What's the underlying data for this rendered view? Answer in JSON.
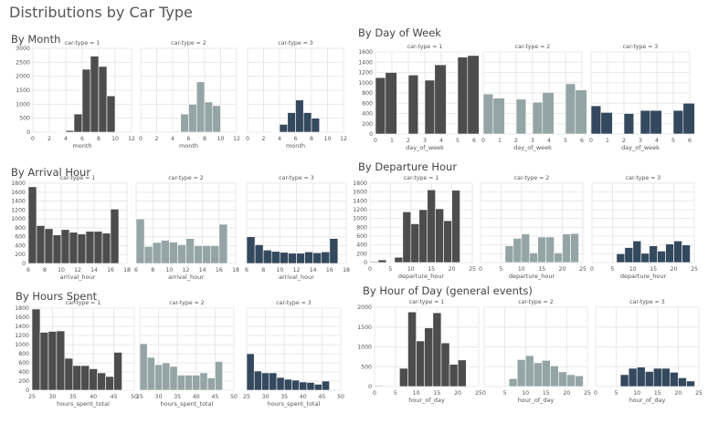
{
  "title": "Distributions by Car Type",
  "colors": {
    "car1": "#4d4d4d",
    "car2": "#95a5a6",
    "car3": "#34495e",
    "grid": "#e8e8e8",
    "axis_text": "#555555"
  },
  "sections": [
    {
      "id": "month",
      "title": "By Month"
    },
    {
      "id": "dow",
      "title": "By Day of Week"
    },
    {
      "id": "arrival",
      "title": "By Arrival Hour"
    },
    {
      "id": "departure",
      "title": "By Departure Hour"
    },
    {
      "id": "hours_spent",
      "title": "By Hours Spent"
    },
    {
      "id": "hour_of_day",
      "title": "By Hour of Day (general events)"
    }
  ],
  "chart_data": [
    {
      "type": "bar",
      "section": "By Month",
      "xlabel": "month",
      "ylabel": "",
      "xlim": [
        0,
        12
      ],
      "ylim": [
        0,
        3000
      ],
      "bin_width": 1,
      "xticks": [
        0,
        2,
        4,
        6,
        8,
        10,
        12
      ],
      "yticks": [
        0,
        500,
        1000,
        1500,
        2000,
        2500,
        3000
      ],
      "grid": true,
      "panels": [
        {
          "title": "car-type = 1",
          "x": [
            3,
            4,
            5,
            6,
            7,
            8,
            9
          ],
          "values": [
            10,
            60,
            650,
            2250,
            2720,
            2350,
            1300
          ]
        },
        {
          "title": "car-type = 2",
          "x": [
            4,
            5,
            6,
            7,
            8,
            9
          ],
          "values": [
            30,
            650,
            1000,
            1800,
            1080,
            950
          ]
        },
        {
          "title": "car-type = 3",
          "x": [
            3,
            4,
            5,
            6,
            7,
            8
          ],
          "values": [
            10,
            280,
            700,
            1150,
            700,
            500
          ]
        }
      ]
    },
    {
      "type": "bar",
      "section": "By Day of Week",
      "xlabel": "day_of_week",
      "ylabel": "",
      "xlim": [
        0,
        6
      ],
      "ylim": [
        0,
        1600
      ],
      "xticks": [
        0,
        1,
        2,
        3,
        4,
        5,
        6
      ],
      "yticks": [
        0,
        200,
        400,
        600,
        800,
        1000,
        1200,
        1400,
        1600
      ],
      "grid": true,
      "panels": [
        {
          "title": "car-type = 1",
          "bars": [
            {
              "start": 0,
              "end": 0.6,
              "value": 1100
            },
            {
              "start": 0.6,
              "end": 1.3,
              "value": 1200
            },
            {
              "start": 2,
              "end": 2.6,
              "value": 1150
            },
            {
              "start": 3,
              "end": 3.6,
              "value": 1050
            },
            {
              "start": 3.6,
              "end": 4.3,
              "value": 1350
            },
            {
              "start": 5,
              "end": 5.6,
              "value": 1500
            },
            {
              "start": 5.6,
              "end": 6.3,
              "value": 1530
            }
          ]
        },
        {
          "title": "car-type = 2",
          "bars": [
            {
              "start": 0,
              "end": 0.6,
              "value": 780
            },
            {
              "start": 0.6,
              "end": 1.3,
              "value": 700
            },
            {
              "start": 2,
              "end": 2.6,
              "value": 680
            },
            {
              "start": 3,
              "end": 3.6,
              "value": 620
            },
            {
              "start": 3.6,
              "end": 4.3,
              "value": 810
            },
            {
              "start": 5,
              "end": 5.6,
              "value": 980
            },
            {
              "start": 5.6,
              "end": 6.3,
              "value": 860
            }
          ]
        },
        {
          "title": "car-type = 3",
          "bars": [
            {
              "start": 0,
              "end": 0.6,
              "value": 550
            },
            {
              "start": 0.6,
              "end": 1.3,
              "value": 420
            },
            {
              "start": 2,
              "end": 2.6,
              "value": 400
            },
            {
              "start": 3,
              "end": 3.6,
              "value": 460
            },
            {
              "start": 3.6,
              "end": 4.3,
              "value": 460
            },
            {
              "start": 5,
              "end": 5.6,
              "value": 460
            },
            {
              "start": 5.6,
              "end": 6.3,
              "value": 600
            }
          ]
        }
      ]
    },
    {
      "type": "bar",
      "section": "By Arrival Hour",
      "xlabel": "arrival_hour",
      "ylabel": "",
      "xlim": [
        6,
        18
      ],
      "ylim": [
        0,
        1800
      ],
      "bin_width": 1,
      "xticks": [
        6,
        8,
        10,
        12,
        14,
        16,
        18
      ],
      "yticks": [
        0,
        200,
        400,
        600,
        800,
        1000,
        1200,
        1400,
        1600,
        1800
      ],
      "grid": true,
      "panels": [
        {
          "title": "car-type = 1",
          "x": [
            6,
            7,
            8,
            9,
            10,
            11,
            12,
            13,
            14,
            15,
            16
          ],
          "values": [
            1720,
            850,
            780,
            640,
            760,
            700,
            660,
            720,
            720,
            680,
            1220
          ]
        },
        {
          "title": "car-type = 2",
          "x": [
            6,
            7,
            8,
            9,
            10,
            11,
            12,
            13,
            14,
            15,
            16
          ],
          "values": [
            1000,
            380,
            470,
            520,
            480,
            420,
            560,
            400,
            400,
            400,
            880
          ]
        },
        {
          "title": "car-type = 3",
          "x": [
            6,
            7,
            8,
            9,
            10,
            11,
            12,
            13,
            14,
            15,
            16
          ],
          "values": [
            600,
            420,
            300,
            270,
            250,
            230,
            230,
            260,
            240,
            260,
            560
          ]
        }
      ]
    },
    {
      "type": "bar",
      "section": "By Departure Hour",
      "xlabel": "departure_hour",
      "ylabel": "",
      "xlim": [
        0,
        25
      ],
      "ylim": [
        0,
        1800
      ],
      "bin_width": 2,
      "xticks": [
        0,
        5,
        10,
        15,
        20,
        25
      ],
      "yticks": [
        0,
        200,
        400,
        600,
        800,
        1000,
        1200,
        1400,
        1600,
        1800
      ],
      "grid": true,
      "panels": [
        {
          "title": "car-type = 1",
          "x": [
            0,
            2,
            4,
            6,
            8,
            10,
            12,
            14,
            16,
            18,
            20,
            22
          ],
          "values": [
            20,
            60,
            0,
            120,
            1150,
            880,
            1200,
            1650,
            1220,
            950,
            1640,
            0
          ]
        },
        {
          "title": "car-type = 2",
          "x": [
            4,
            6,
            8,
            10,
            12,
            14,
            16,
            18,
            20,
            22
          ],
          "values": [
            0,
            380,
            550,
            650,
            220,
            580,
            580,
            220,
            650,
            660
          ]
        },
        {
          "title": "car-type = 3",
          "x": [
            4,
            6,
            8,
            10,
            12,
            14,
            16,
            18,
            20,
            22
          ],
          "values": [
            0,
            200,
            340,
            490,
            210,
            380,
            260,
            420,
            490,
            400
          ]
        }
      ]
    },
    {
      "type": "bar",
      "section": "By Hours Spent",
      "xlabel": "hours_spent_total",
      "ylabel": "",
      "xlim": [
        25,
        50
      ],
      "ylim": [
        0,
        1800
      ],
      "bin_width": 2,
      "xticks": [
        25,
        30,
        35,
        40,
        45,
        50
      ],
      "yticks": [
        0,
        200,
        400,
        600,
        800,
        1000,
        1200,
        1400,
        1600,
        1800
      ],
      "grid": true,
      "panels": [
        {
          "title": "car-type = 1",
          "x": [
            25,
            27,
            29,
            31,
            33,
            35,
            37,
            39,
            41,
            43,
            45
          ],
          "values": [
            1780,
            1270,
            1290,
            1300,
            700,
            540,
            540,
            470,
            380,
            300,
            830
          ]
        },
        {
          "title": "car-type = 2",
          "x": [
            25,
            27,
            29,
            31,
            33,
            35,
            37,
            39,
            41,
            43,
            45
          ],
          "values": [
            1020,
            720,
            560,
            600,
            520,
            330,
            330,
            330,
            380,
            270,
            630
          ]
        },
        {
          "title": "car-type = 3",
          "x": [
            25,
            27,
            29,
            31,
            33,
            35,
            37,
            39,
            41,
            43,
            45
          ],
          "values": [
            800,
            420,
            380,
            380,
            280,
            240,
            220,
            180,
            170,
            130,
            200
          ]
        }
      ]
    },
    {
      "type": "bar",
      "section": "By Hour of Day (general events)",
      "xlabel": "hour_of_day",
      "ylabel": "",
      "xlim": [
        0,
        25
      ],
      "ylim": [
        0,
        2000
      ],
      "bin_width": 2,
      "xticks": [
        0,
        5,
        10,
        15,
        20,
        25
      ],
      "yticks": [
        0,
        500,
        1000,
        1500,
        2000
      ],
      "grid": true,
      "panels": [
        {
          "title": "car-type = 1",
          "x": [
            0,
            2,
            4,
            6,
            8,
            10,
            12,
            14,
            16,
            18,
            20,
            22
          ],
          "values": [
            20,
            0,
            0,
            460,
            1880,
            1150,
            1480,
            1860,
            1100,
            560,
            670,
            0
          ]
        },
        {
          "title": "car-type = 2",
          "x": [
            6,
            8,
            10,
            12,
            14,
            16,
            18,
            20,
            22
          ],
          "values": [
            200,
            680,
            780,
            600,
            660,
            520,
            370,
            300,
            270
          ]
        },
        {
          "title": "car-type = 3",
          "x": [
            6,
            8,
            10,
            12,
            14,
            16,
            18,
            20,
            22
          ],
          "values": [
            300,
            460,
            490,
            380,
            460,
            460,
            360,
            220,
            140
          ]
        }
      ]
    }
  ]
}
